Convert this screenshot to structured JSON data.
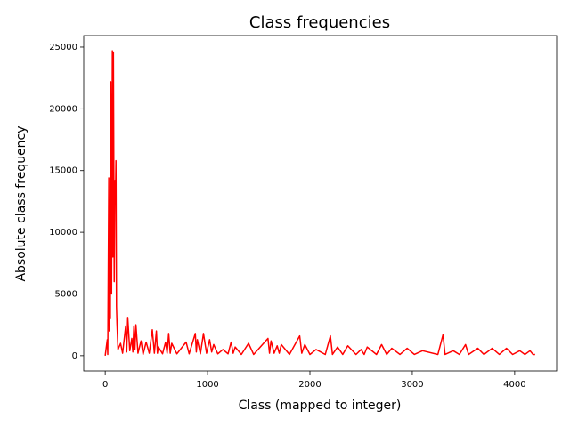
{
  "chart_data": {
    "type": "line",
    "title": "Class frequencies",
    "x_label": "Class (mapped to integer)",
    "y_label": "Absolute class frequency",
    "x": [
      0,
      20,
      25,
      35,
      40,
      45,
      50,
      55,
      62,
      70,
      75,
      80,
      88,
      95,
      100,
      105,
      110,
      115,
      125,
      150,
      170,
      200,
      210,
      220,
      240,
      260,
      270,
      280,
      290,
      300,
      320,
      350,
      370,
      400,
      430,
      460,
      480,
      500,
      510,
      520,
      560,
      590,
      605,
      620,
      635,
      650,
      700,
      790,
      820,
      880,
      890,
      900,
      930,
      960,
      990,
      1020,
      1040,
      1060,
      1100,
      1150,
      1200,
      1230,
      1250,
      1270,
      1330,
      1400,
      1450,
      1590,
      1605,
      1620,
      1650,
      1680,
      1700,
      1720,
      1800,
      1900,
      1920,
      1950,
      2000,
      2060,
      2150,
      2200,
      2220,
      2270,
      2320,
      2370,
      2450,
      2500,
      2530,
      2560,
      2650,
      2700,
      2750,
      2800,
      2880,
      2950,
      3020,
      3100,
      3250,
      3300,
      3320,
      3400,
      3460,
      3520,
      3550,
      3640,
      3700,
      3780,
      3850,
      3920,
      3980,
      4050,
      4100,
      4150,
      4180,
      4200
    ],
    "values": [
      0,
      1300,
      100,
      14400,
      2000,
      12000,
      3000,
      22200,
      5000,
      24700,
      8000,
      24600,
      6000,
      14200,
      12300,
      15800,
      4000,
      2600,
      500,
      1000,
      200,
      2400,
      300,
      3100,
      400,
      1400,
      300,
      2400,
      500,
      2500,
      200,
      1200,
      100,
      1100,
      200,
      2100,
      200,
      2000,
      200,
      700,
      150,
      1100,
      200,
      1800,
      200,
      1000,
      150,
      1100,
      150,
      1800,
      300,
      1300,
      150,
      1800,
      200,
      1300,
      300,
      900,
      150,
      500,
      150,
      1100,
      200,
      700,
      100,
      1000,
      100,
      1400,
      200,
      1200,
      200,
      800,
      200,
      900,
      100,
      1600,
      200,
      900,
      100,
      500,
      100,
      1600,
      100,
      700,
      100,
      800,
      100,
      500,
      100,
      700,
      100,
      900,
      100,
      600,
      100,
      600,
      100,
      400,
      100,
      1700,
      100,
      400,
      100,
      900,
      100,
      600,
      100,
      600,
      100,
      600,
      100,
      400,
      100,
      400,
      100,
      100
    ],
    "color": "#ff0000",
    "xlim": [
      -210,
      4410
    ],
    "xticks": [
      0,
      1000,
      2000,
      3000,
      4000
    ],
    "ylim": [
      -1235,
      25935
    ],
    "yticks": [
      0,
      5000,
      10000,
      15000,
      20000,
      25000
    ],
    "grid": false
  }
}
